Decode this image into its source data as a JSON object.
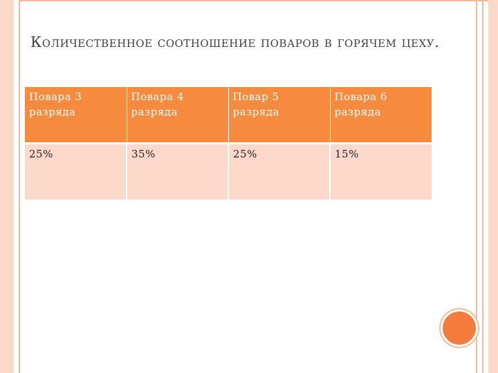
{
  "slide": {
    "title": "Количественное соотношение поваров в горячем цеху.",
    "table": {
      "headers": [
        "Повара 3 разряда",
        "Повара 4 разряда",
        "Повар 5 разряда",
        "Повара 6 разряда"
      ],
      "values": [
        "25%",
        "35%",
        "25%",
        "15%"
      ]
    }
  },
  "colors": {
    "accent": "#f68b3f",
    "cell_fill": "#fdd9cb",
    "frame": "#f5b89a"
  }
}
